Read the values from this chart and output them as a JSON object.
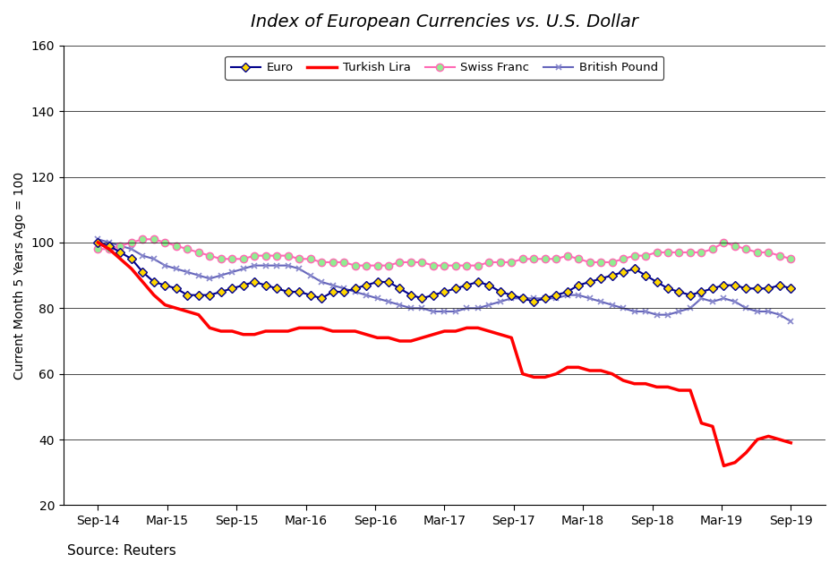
{
  "title": "Index of European Currencies vs. U.S. Dollar",
  "ylabel": "Current Month 5 Years Ago = 100",
  "source": "Source: Reuters",
  "ylim": [
    20,
    160
  ],
  "yticks": [
    20,
    40,
    60,
    80,
    100,
    120,
    140,
    160
  ],
  "x_labels": [
    "Sep-14",
    "Mar-15",
    "Sep-15",
    "Mar-16",
    "Sep-16",
    "Mar-17",
    "Sep-17",
    "Mar-18",
    "Sep-18",
    "Mar-19",
    "Sep-19"
  ],
  "n_points": 63,
  "series": {
    "Euro": {
      "color": "#00008B",
      "marker": "D",
      "marker_color": "#FFD700",
      "values": [
        100,
        99,
        97,
        95,
        91,
        88,
        87,
        86,
        84,
        84,
        84,
        85,
        86,
        87,
        88,
        87,
        86,
        85,
        85,
        84,
        83,
        85,
        85,
        86,
        87,
        88,
        88,
        86,
        84,
        83,
        84,
        85,
        86,
        87,
        88,
        87,
        85,
        84,
        83,
        82,
        83,
        84,
        85,
        87,
        88,
        89,
        90,
        91,
        92,
        90,
        88,
        86,
        85,
        84,
        85,
        86,
        87,
        87,
        86,
        86,
        86,
        87,
        86
      ]
    },
    "Turkish Lira": {
      "color": "#FF0000",
      "marker": "none",
      "marker_color": null,
      "values": [
        100,
        98,
        95,
        92,
        88,
        84,
        81,
        80,
        79,
        78,
        74,
        73,
        73,
        72,
        72,
        73,
        73,
        73,
        74,
        74,
        74,
        73,
        73,
        73,
        72,
        71,
        71,
        70,
        70,
        71,
        72,
        73,
        73,
        74,
        74,
        73,
        72,
        71,
        60,
        59,
        59,
        60,
        62,
        62,
        61,
        61,
        60,
        58,
        57,
        57,
        56,
        56,
        55,
        55,
        45,
        44,
        32,
        33,
        36,
        40,
        41,
        40,
        39
      ]
    },
    "Swiss Franc": {
      "color": "#FF69B4",
      "marker": "o",
      "marker_color": "#90EE90",
      "values": [
        98,
        98,
        99,
        100,
        101,
        101,
        100,
        99,
        98,
        97,
        96,
        95,
        95,
        95,
        96,
        96,
        96,
        96,
        95,
        95,
        94,
        94,
        94,
        93,
        93,
        93,
        93,
        94,
        94,
        94,
        93,
        93,
        93,
        93,
        93,
        94,
        94,
        94,
        95,
        95,
        95,
        95,
        96,
        95,
        94,
        94,
        94,
        95,
        96,
        96,
        97,
        97,
        97,
        97,
        97,
        98,
        100,
        99,
        98,
        97,
        97,
        96,
        95
      ]
    },
    "British Pound": {
      "color": "#6666BB",
      "marker": "x",
      "marker_color": "#8888CC",
      "values": [
        101,
        100,
        99,
        98,
        96,
        95,
        93,
        92,
        91,
        90,
        89,
        90,
        91,
        92,
        93,
        93,
        93,
        93,
        92,
        90,
        88,
        87,
        86,
        85,
        84,
        83,
        82,
        81,
        80,
        80,
        79,
        79,
        79,
        80,
        80,
        81,
        82,
        83,
        83,
        83,
        83,
        83,
        84,
        84,
        83,
        82,
        81,
        80,
        79,
        79,
        78,
        78,
        79,
        80,
        83,
        82,
        83,
        82,
        80,
        79,
        79,
        78,
        76
      ]
    }
  }
}
